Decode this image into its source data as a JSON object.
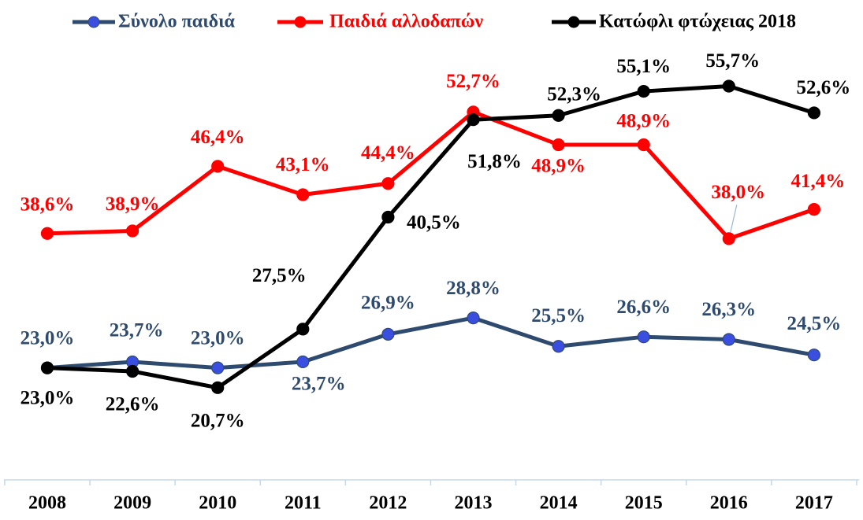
{
  "chart_data": {
    "type": "line",
    "categories": [
      "2008",
      "2009",
      "2010",
      "2011",
      "2012",
      "2013",
      "2014",
      "2015",
      "2016",
      "2017"
    ],
    "series": [
      {
        "name": "Σύνολο παιδιά",
        "color": "#2e4a6e",
        "marker_color": "#3a4fe0",
        "values": [
          23.0,
          23.7,
          23.0,
          23.7,
          26.9,
          28.8,
          25.5,
          26.6,
          26.3,
          24.5
        ],
        "value_labels": [
          "23,0%",
          "23,7%",
          "23,0%",
          "23,7%",
          "26,9%",
          "28,8%",
          "25,5%",
          "26,6%",
          "26,3%",
          "24,5%"
        ]
      },
      {
        "name": "Παιδιά αλλοδαπών",
        "color": "#ff0000",
        "marker_color": "#ff0000",
        "values": [
          38.6,
          38.9,
          46.4,
          43.1,
          44.4,
          52.7,
          48.9,
          48.9,
          38.0,
          41.4
        ],
        "value_labels": [
          "38,6%",
          "38,9%",
          "46,4%",
          "43,1%",
          "44,4%",
          "52,7%",
          "48,9%",
          "48,9%",
          "38,0%",
          "41,4%"
        ]
      },
      {
        "name": "Κατώφλι φτώχειας 2018",
        "color": "#000000",
        "marker_color": "#000000",
        "values": [
          23.0,
          22.6,
          20.7,
          27.5,
          40.5,
          51.8,
          52.3,
          55.1,
          55.7,
          52.6
        ],
        "value_labels": [
          "23,0%",
          "22,6%",
          "20,7%",
          "27,5%",
          "40,5%",
          "51,8%",
          "52,3%",
          "55,1%",
          "55,7%",
          "52,6%"
        ]
      }
    ],
    "ylim": [
      10,
      60
    ]
  }
}
